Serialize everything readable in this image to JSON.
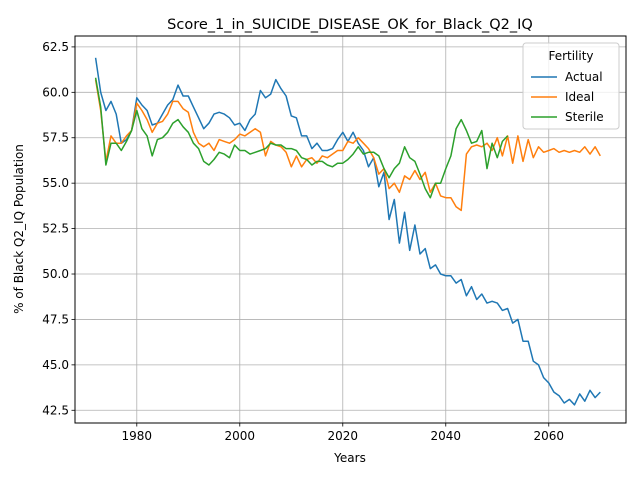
{
  "chart_data": {
    "type": "line",
    "title": "Score_1_in_SUICIDE_DISEASE_OK_for_Black_Q2_IQ",
    "xlabel": "Years",
    "ylabel": "% of Black Q2_IQ Population",
    "xlim": [
      1968,
      2075
    ],
    "ylim": [
      41.8,
      63.1
    ],
    "xticks": [
      1980,
      2000,
      2020,
      2040,
      2060
    ],
    "yticks": [
      42.5,
      45.0,
      47.5,
      50.0,
      52.5,
      55.0,
      57.5,
      60.0,
      62.5
    ],
    "grid": true,
    "legend": {
      "title": "Fertility",
      "placement": "top-right"
    },
    "series": [
      {
        "name": "Actual",
        "color": "#1f77b4",
        "x": [
          1972,
          1973,
          1974,
          1975,
          1976,
          1977,
          1978,
          1979,
          1980,
          1981,
          1982,
          1983,
          1984,
          1985,
          1986,
          1987,
          1988,
          1989,
          1990,
          1991,
          1992,
          1993,
          1994,
          1995,
          1996,
          1997,
          1998,
          1999,
          2000,
          2001,
          2002,
          2003,
          2004,
          2005,
          2006,
          2007,
          2008,
          2009,
          2010,
          2011,
          2012,
          2013,
          2014,
          2015,
          2016,
          2017,
          2018,
          2019,
          2020,
          2021,
          2022,
          2023,
          2024,
          2025,
          2026,
          2027,
          2028,
          2029,
          2030,
          2031,
          2032,
          2033,
          2034,
          2035,
          2036,
          2037,
          2038,
          2039,
          2040,
          2041,
          2042,
          2043,
          2044,
          2045,
          2046,
          2047,
          2048,
          2049,
          2050,
          2051,
          2052,
          2053,
          2054,
          2055,
          2056,
          2057,
          2058,
          2059,
          2060,
          2061,
          2062,
          2063,
          2064,
          2065,
          2066,
          2067,
          2068,
          2069,
          2070
        ],
        "values": [
          61.9,
          60.0,
          59.0,
          59.5,
          58.8,
          57.2,
          57.4,
          57.9,
          59.7,
          59.3,
          59.0,
          58.2,
          58.3,
          58.8,
          59.3,
          59.6,
          60.4,
          59.8,
          59.8,
          59.2,
          58.6,
          58.0,
          58.3,
          58.8,
          58.9,
          58.8,
          58.6,
          58.2,
          58.3,
          57.9,
          58.5,
          58.8,
          60.1,
          59.7,
          59.9,
          60.7,
          60.2,
          59.8,
          58.7,
          58.6,
          57.6,
          57.6,
          56.9,
          57.2,
          56.8,
          56.8,
          56.9,
          57.4,
          57.8,
          57.3,
          57.8,
          57.2,
          56.8,
          55.9,
          56.4,
          54.8,
          55.6,
          53.0,
          54.1,
          51.7,
          53.4,
          51.3,
          52.7,
          51.1,
          51.4,
          50.3,
          50.5,
          50.0,
          49.9,
          49.9,
          49.5,
          49.7,
          48.8,
          49.3,
          48.6,
          48.9,
          48.4,
          48.5,
          48.4,
          48.0,
          48.1,
          47.3,
          47.5,
          46.3,
          46.3,
          45.2,
          45.0,
          44.3,
          44.0,
          43.5,
          43.3,
          42.9,
          43.1,
          42.8,
          43.4,
          43.0,
          43.6,
          43.2,
          43.5
        ]
      },
      {
        "name": "Ideal",
        "color": "#ff7f0e",
        "x": [
          1972,
          1973,
          1974,
          1975,
          1976,
          1977,
          1978,
          1979,
          1980,
          1981,
          1982,
          1983,
          1984,
          1985,
          1986,
          1987,
          1988,
          1989,
          1990,
          1991,
          1992,
          1993,
          1994,
          1995,
          1996,
          1997,
          1998,
          1999,
          2000,
          2001,
          2002,
          2003,
          2004,
          2005,
          2006,
          2007,
          2008,
          2009,
          2010,
          2011,
          2012,
          2013,
          2014,
          2015,
          2016,
          2017,
          2018,
          2019,
          2020,
          2021,
          2022,
          2023,
          2024,
          2025,
          2026,
          2027,
          2028,
          2029,
          2030,
          2031,
          2032,
          2033,
          2034,
          2035,
          2036,
          2037,
          2038,
          2039,
          2040,
          2041,
          2042,
          2043,
          2044,
          2045,
          2046,
          2047,
          2048,
          2049,
          2050,
          2051,
          2052,
          2053,
          2054,
          2055,
          2056,
          2057,
          2058,
          2059,
          2060,
          2061,
          2062,
          2063,
          2064,
          2065,
          2066,
          2067,
          2068,
          2069,
          2070
        ],
        "values": [
          60.7,
          59.0,
          56.2,
          57.6,
          57.2,
          57.2,
          57.6,
          57.9,
          59.4,
          59.0,
          58.5,
          57.8,
          58.3,
          58.4,
          58.8,
          59.5,
          59.5,
          59.1,
          58.9,
          57.8,
          57.2,
          57.0,
          57.2,
          56.8,
          57.4,
          57.3,
          57.2,
          57.4,
          57.7,
          57.6,
          57.8,
          58.0,
          57.8,
          56.5,
          57.3,
          57.1,
          57.0,
          56.7,
          55.9,
          56.5,
          55.9,
          56.3,
          56.4,
          56.1,
          56.5,
          56.4,
          56.6,
          56.8,
          56.8,
          57.3,
          57.2,
          57.5,
          57.2,
          56.9,
          56.4,
          55.5,
          55.8,
          54.7,
          55.0,
          54.5,
          55.4,
          55.2,
          55.7,
          55.2,
          55.6,
          54.5,
          55.0,
          54.3,
          54.2,
          54.2,
          53.7,
          53.5,
          56.6,
          57.0,
          57.1,
          57.0,
          57.2,
          56.8,
          57.5,
          56.5,
          57.6,
          56.1,
          57.6,
          56.2,
          57.4,
          56.4,
          57.0,
          56.7,
          56.8,
          56.9,
          56.7,
          56.8,
          56.7,
          56.8,
          56.7,
          57.0,
          56.6,
          57.0,
          56.5
        ]
      },
      {
        "name": "Sterile",
        "color": "#2ca02c",
        "x": [
          1972,
          1973,
          1974,
          1975,
          1976,
          1977,
          1978,
          1979,
          1980,
          1981,
          1982,
          1983,
          1984,
          1985,
          1986,
          1987,
          1988,
          1989,
          1990,
          1991,
          1992,
          1993,
          1994,
          1995,
          1996,
          1997,
          1998,
          1999,
          2000,
          2001,
          2002,
          2003,
          2004,
          2005,
          2006,
          2007,
          2008,
          2009,
          2010,
          2011,
          2012,
          2013,
          2014,
          2015,
          2016,
          2017,
          2018,
          2019,
          2020,
          2021,
          2022,
          2023,
          2024,
          2025,
          2026,
          2027,
          2028,
          2029,
          2030,
          2031,
          2032,
          2033,
          2034,
          2035,
          2036,
          2037,
          2038,
          2039,
          2040,
          2041,
          2042,
          2043,
          2044,
          2045,
          2046,
          2047,
          2048,
          2049,
          2050,
          2051,
          2052
        ],
        "values": [
          60.8,
          59.2,
          56.0,
          57.2,
          57.2,
          56.8,
          57.3,
          57.9,
          59.0,
          58.0,
          57.6,
          56.5,
          57.4,
          57.5,
          57.8,
          58.3,
          58.5,
          58.1,
          57.8,
          57.2,
          56.9,
          56.2,
          56.0,
          56.3,
          56.7,
          56.6,
          56.4,
          57.1,
          56.8,
          56.8,
          56.6,
          56.7,
          56.8,
          56.9,
          57.2,
          57.1,
          57.1,
          56.9,
          56.9,
          56.8,
          56.4,
          56.3,
          56.0,
          56.2,
          56.2,
          56.0,
          55.9,
          56.1,
          56.1,
          56.3,
          56.6,
          57.0,
          56.6,
          56.7,
          56.7,
          56.5,
          55.8,
          55.3,
          55.8,
          56.1,
          57.0,
          56.4,
          56.2,
          55.5,
          54.7,
          54.2,
          55.0,
          55.0,
          55.8,
          56.5,
          58.0,
          58.5,
          57.9,
          57.2,
          57.3,
          57.9,
          55.8,
          57.2,
          56.4,
          57.3,
          57.6
        ]
      }
    ]
  }
}
